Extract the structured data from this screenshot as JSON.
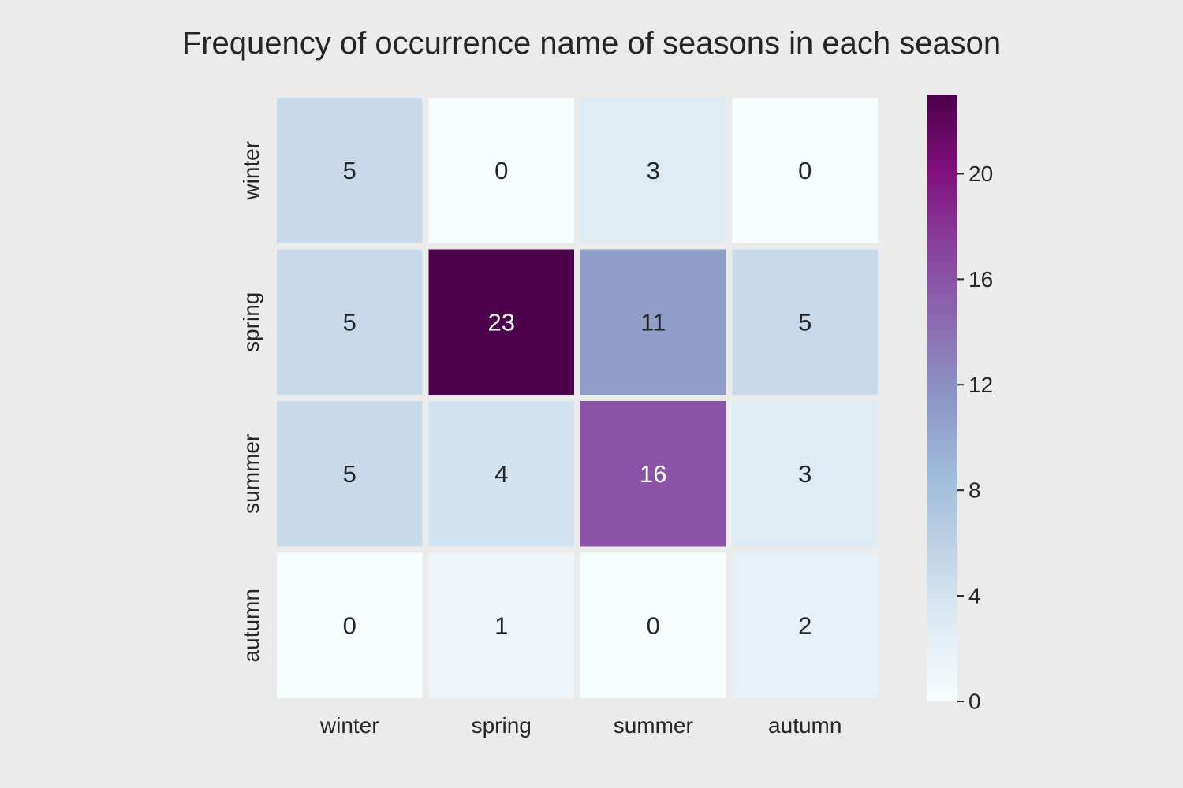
{
  "chart_data": {
    "type": "heatmap",
    "title": "Frequency of occurrence name of seasons in each season",
    "xlabel": "",
    "ylabel": "",
    "x_categories": [
      "winter",
      "spring",
      "summer",
      "autumn"
    ],
    "y_categories": [
      "winter",
      "spring",
      "summer",
      "autumn"
    ],
    "values": [
      [
        5,
        0,
        3,
        0
      ],
      [
        5,
        23,
        11,
        5
      ],
      [
        5,
        4,
        16,
        3
      ],
      [
        0,
        1,
        0,
        2
      ]
    ],
    "annotations": true,
    "colormap": "BuPu",
    "colorbar": {
      "range": [
        0,
        23
      ],
      "ticks": [
        0,
        4,
        8,
        12,
        16,
        20
      ],
      "position": "right"
    },
    "grid": false,
    "colors": {
      "background": "#ebebeb",
      "cell_separator": "#ebebeb",
      "text_dark": "#262626",
      "text_light": "#ffffff"
    }
  }
}
